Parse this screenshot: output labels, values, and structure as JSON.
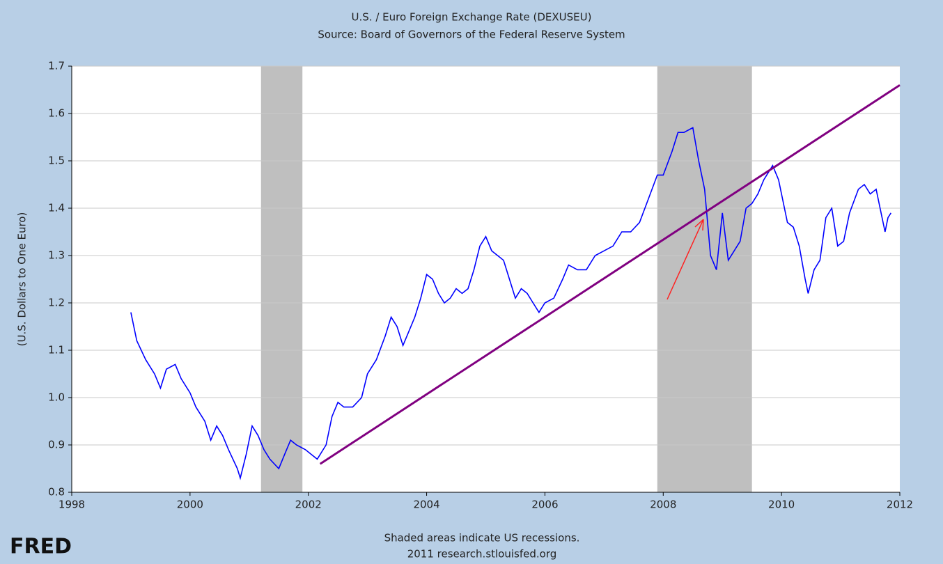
{
  "chart_data": {
    "type": "line",
    "title": "U.S. / Euro Foreign Exchange Rate (DEXUSEU)",
    "subtitle": "Source: Board of Governors of the Federal Reserve System",
    "y_label": "(U.S. Dollars to One Euro)",
    "footnote": "Shaded areas indicate US recessions.",
    "source": "2011 research.stlouisfed.org",
    "logo": "FRED",
    "xlim": [
      1998,
      2012
    ],
    "xticks": [
      1998,
      2000,
      2002,
      2004,
      2006,
      2008,
      2010,
      2012
    ],
    "ylim": [
      0.8,
      1.7
    ],
    "yticks": [
      0.8,
      0.9,
      {
        "value": 1,
        "label": "1.0"
      },
      1.1,
      1.2,
      1.3,
      1.4,
      1.5,
      1.6,
      1.7
    ],
    "grid": true,
    "recessions": [
      [
        2001.2,
        2001.9
      ],
      [
        2007.9,
        2009.5
      ]
    ],
    "trend_line": {
      "color": "#800080",
      "x": [
        2002.2,
        2012
      ],
      "values": [
        0.86,
        1.66
      ]
    },
    "series": [
      {
        "color": "#0000ff",
        "x": [
          1999.0,
          1999.1,
          1999.25,
          1999.4,
          1999.5,
          1999.6,
          1999.75,
          1999.85,
          2000.0,
          2000.1,
          2000.25,
          2000.35,
          2000.45,
          2000.55,
          2000.65,
          2000.8,
          2000.85,
          2000.95,
          2001.05,
          2001.15,
          2001.25,
          2001.35,
          2001.5,
          2001.6,
          2001.7,
          2001.8,
          2001.95,
          2002.05,
          2002.15,
          2002.3,
          2002.4,
          2002.5,
          2002.6,
          2002.75,
          2002.9,
          2003.0,
          2003.15,
          2003.3,
          2003.4,
          2003.5,
          2003.6,
          2003.7,
          2003.8,
          2003.9,
          2004.0,
          2004.1,
          2004.2,
          2004.3,
          2004.4,
          2004.5,
          2004.6,
          2004.7,
          2004.8,
          2004.9,
          2005.0,
          2005.1,
          2005.2,
          2005.3,
          2005.4,
          2005.5,
          2005.6,
          2005.7,
          2005.8,
          2005.9,
          2006.0,
          2006.15,
          2006.3,
          2006.4,
          2006.55,
          2006.7,
          2006.85,
          2007.0,
          2007.15,
          2007.3,
          2007.45,
          2007.6,
          2007.75,
          2007.9,
          2008.0,
          2008.15,
          2008.25,
          2008.35,
          2008.5,
          2008.6,
          2008.7,
          2008.8,
          2008.9,
          2009.0,
          2009.1,
          2009.2,
          2009.3,
          2009.4,
          2009.5,
          2009.6,
          2009.7,
          2009.85,
          2009.95,
          2010.1,
          2010.2,
          2010.3,
          2010.4,
          2010.45,
          2010.55,
          2010.65,
          2010.75,
          2010.85,
          2010.95,
          2011.05,
          2011.15,
          2011.3,
          2011.4,
          2011.5,
          2011.6,
          2011.7,
          2011.75,
          2011.8,
          2011.85
        ],
        "values": [
          1.18,
          1.12,
          1.08,
          1.05,
          1.02,
          1.06,
          1.07,
          1.04,
          1.01,
          0.98,
          0.95,
          0.91,
          0.94,
          0.92,
          0.89,
          0.85,
          0.83,
          0.88,
          0.94,
          0.92,
          0.89,
          0.87,
          0.85,
          0.88,
          0.91,
          0.9,
          0.89,
          0.88,
          0.87,
          0.9,
          0.96,
          0.99,
          0.98,
          0.98,
          1.0,
          1.05,
          1.08,
          1.13,
          1.17,
          1.15,
          1.11,
          1.14,
          1.17,
          1.21,
          1.26,
          1.25,
          1.22,
          1.2,
          1.21,
          1.23,
          1.22,
          1.23,
          1.27,
          1.32,
          1.34,
          1.31,
          1.3,
          1.29,
          1.25,
          1.21,
          1.23,
          1.22,
          1.2,
          1.18,
          1.2,
          1.21,
          1.25,
          1.28,
          1.27,
          1.27,
          1.3,
          1.31,
          1.32,
          1.35,
          1.35,
          1.37,
          1.42,
          1.47,
          1.47,
          1.52,
          1.56,
          1.56,
          1.57,
          1.5,
          1.44,
          1.3,
          1.27,
          1.39,
          1.29,
          1.31,
          1.33,
          1.4,
          1.41,
          1.43,
          1.46,
          1.49,
          1.46,
          1.37,
          1.36,
          1.32,
          1.25,
          1.22,
          1.27,
          1.29,
          1.38,
          1.4,
          1.32,
          1.33,
          1.39,
          1.44,
          1.45,
          1.43,
          1.44,
          1.38,
          1.35,
          1.38,
          1.39
        ]
      }
    ]
  }
}
